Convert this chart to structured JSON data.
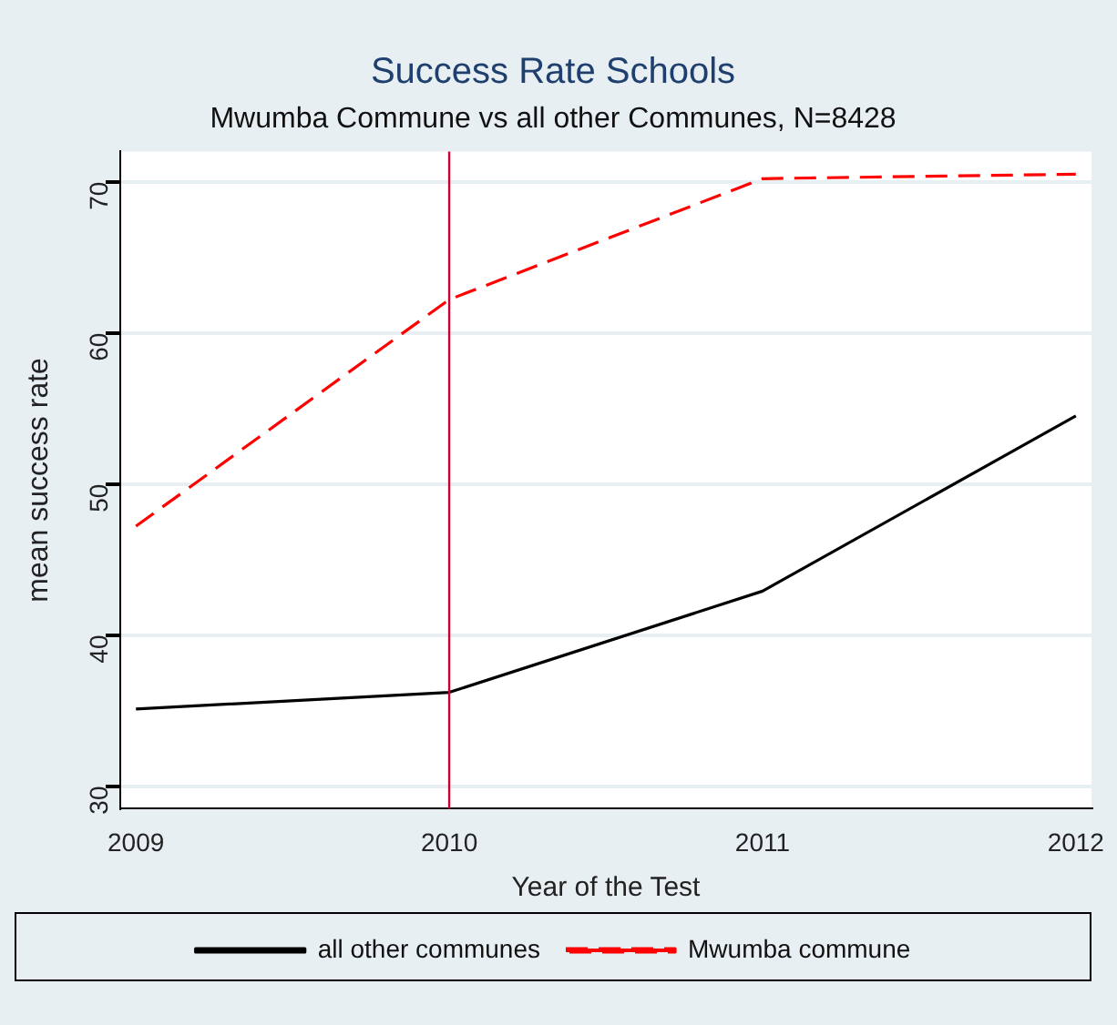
{
  "chart_data": {
    "type": "line",
    "title": "Success Rate Schools",
    "subtitle": "Mwumba Commune vs all other Communes, N=8428",
    "xlabel": "Year of the Test",
    "ylabel": "mean success rate",
    "x": [
      2009,
      2010,
      2011,
      2012
    ],
    "xlim": [
      2008.95,
      2012.05
    ],
    "xticks": [
      2009,
      2010,
      2011,
      2012
    ],
    "ylim": [
      28.5,
      72
    ],
    "yticks": [
      30,
      40,
      50,
      60,
      70
    ],
    "series": [
      {
        "name": "all other communes",
        "color": "#000000",
        "values": [
          35.1,
          36.2,
          42.9,
          54.5
        ],
        "line_style": "solid"
      },
      {
        "name": "Mwumba commune",
        "color": "#ff0000",
        "values": [
          47.2,
          62.2,
          70.2,
          70.5
        ],
        "line_style": "dashed"
      }
    ],
    "ref_lines": [
      {
        "axis": "x",
        "value": 2010,
        "color": "#cc0033"
      }
    ],
    "grid": "y",
    "legend": "bottom",
    "marker": "none"
  }
}
